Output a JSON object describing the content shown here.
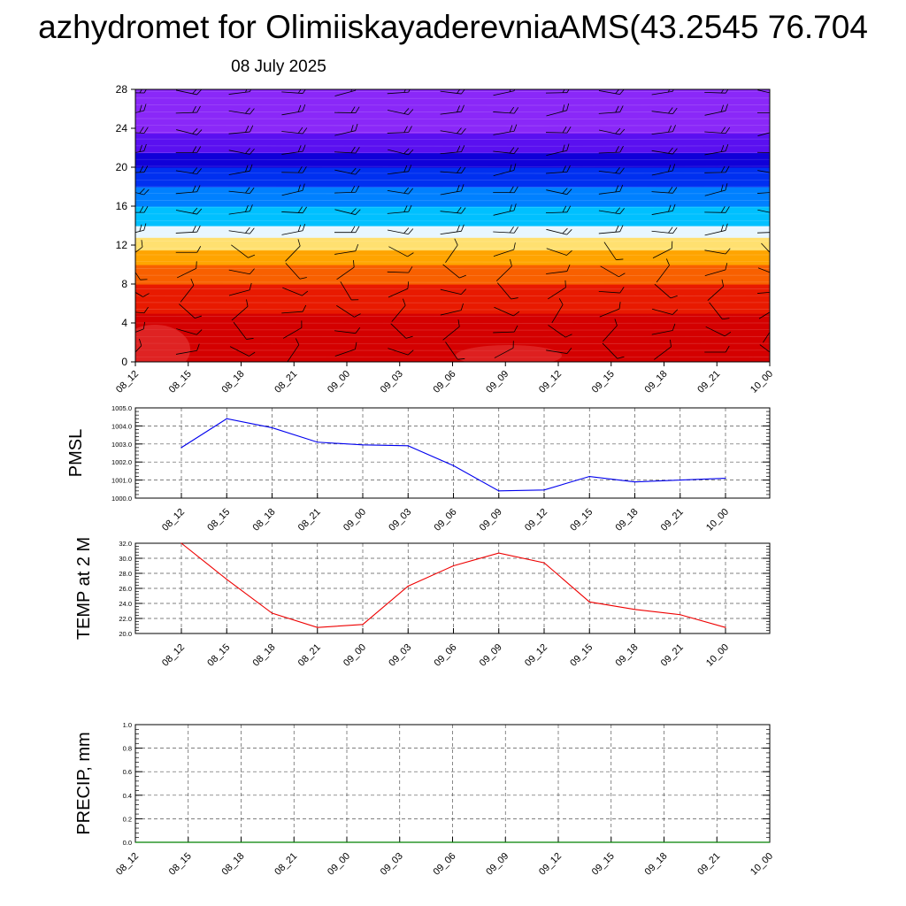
{
  "header": {
    "title": "azhydromet for OlimiiskayaderevniaAMS(43.2545 76.704",
    "subtitle": "08 July 2025"
  },
  "colors": {
    "pmsl_line": "#0000ee",
    "temp_line": "#ee0000",
    "precip_line": "#008000",
    "grid": "#555555"
  },
  "chart_data": [
    {
      "id": "vertical-cross-section",
      "type": "heatmap",
      "title": "",
      "xlabel": "",
      "ylabel": "",
      "x_ticks": [
        "08_12",
        "08_15",
        "08_18",
        "08_21",
        "09_00",
        "09_03",
        "09_06",
        "09_09",
        "09_12",
        "09_15",
        "09_18",
        "09_21",
        "10_00"
      ],
      "y_ticks": [
        0,
        4,
        8,
        12,
        16,
        20,
        24,
        28
      ],
      "ylim": [
        0,
        28
      ],
      "color_bands": [
        {
          "from": 0,
          "to": 5,
          "color": "#d40000"
        },
        {
          "from": 5,
          "to": 8,
          "color": "#e81a00"
        },
        {
          "from": 8,
          "to": 10,
          "color": "#f86000"
        },
        {
          "from": 10,
          "to": 11.5,
          "color": "#ffa400"
        },
        {
          "from": 11.5,
          "to": 12.8,
          "color": "#ffe070"
        },
        {
          "from": 12.8,
          "to": 14,
          "color": "#e8f6ff"
        },
        {
          "from": 14,
          "to": 16,
          "color": "#00c0ff"
        },
        {
          "from": 16,
          "to": 18,
          "color": "#0080ff"
        },
        {
          "from": 18,
          "to": 20,
          "color": "#0030f0"
        },
        {
          "from": 20,
          "to": 21.5,
          "color": "#1000d8"
        },
        {
          "from": 21.5,
          "to": 23.5,
          "color": "#5a10f0"
        },
        {
          "from": 23.5,
          "to": 28,
          "color": "#8a28f8"
        }
      ],
      "wind_barbs": "wind barbs at every time step and height level"
    },
    {
      "id": "pmsl",
      "type": "line",
      "title": "",
      "xlabel": "",
      "ylabel": "PMSL",
      "x": [
        "08_12",
        "08_15",
        "08_18",
        "08_21",
        "09_00",
        "09_03",
        "09_06",
        "09_09",
        "09_12",
        "09_15",
        "09_18",
        "09_21",
        "10_00"
      ],
      "series": [
        {
          "values": [
            1002.8,
            1004.4,
            1003.9,
            1003.1,
            1002.95,
            1002.9,
            1001.8,
            1000.4,
            1000.45,
            1001.2,
            1000.9,
            1001.0,
            1001.1
          ]
        }
      ],
      "ylim": [
        1000.0,
        1005.0
      ],
      "y_ticks": [
        "1000.0",
        "1001.0",
        "1002.0",
        "1003.0",
        "1004.0",
        "1005.0"
      ],
      "grid": true
    },
    {
      "id": "temp-2m",
      "type": "line",
      "title": "",
      "xlabel": "",
      "ylabel": "TEMP at 2 M",
      "x": [
        "08_12",
        "08_15",
        "08_18",
        "08_21",
        "09_00",
        "09_03",
        "09_06",
        "09_09",
        "09_12",
        "09_15",
        "09_18",
        "09_21",
        "10_00"
      ],
      "series": [
        {
          "values": [
            32.0,
            27.2,
            22.7,
            20.8,
            21.2,
            26.3,
            29.0,
            30.7,
            29.4,
            24.2,
            23.2,
            22.5,
            20.8
          ]
        }
      ],
      "ylim": [
        20.0,
        32.0
      ],
      "y_ticks": [
        "20.0",
        "22.0",
        "24.0",
        "26.0",
        "28.0",
        "30.0",
        "32.0"
      ],
      "grid": true
    },
    {
      "id": "precip",
      "type": "line",
      "title": "",
      "xlabel": "",
      "ylabel": "PRECIP, mm",
      "x": [
        "08_12",
        "08_15",
        "08_18",
        "08_21",
        "09_00",
        "09_03",
        "09_06",
        "09_09",
        "09_12",
        "09_15",
        "09_18",
        "09_21",
        "10_00"
      ],
      "series": [
        {
          "values": [
            0,
            0,
            0,
            0,
            0,
            0,
            0,
            0,
            0,
            0,
            0,
            0,
            0
          ]
        }
      ],
      "ylim": [
        0.0,
        1.0
      ],
      "y_ticks": [
        "0.0",
        "0.2",
        "0.4",
        "0.6",
        "0.8",
        "1.0"
      ],
      "grid": true
    }
  ]
}
